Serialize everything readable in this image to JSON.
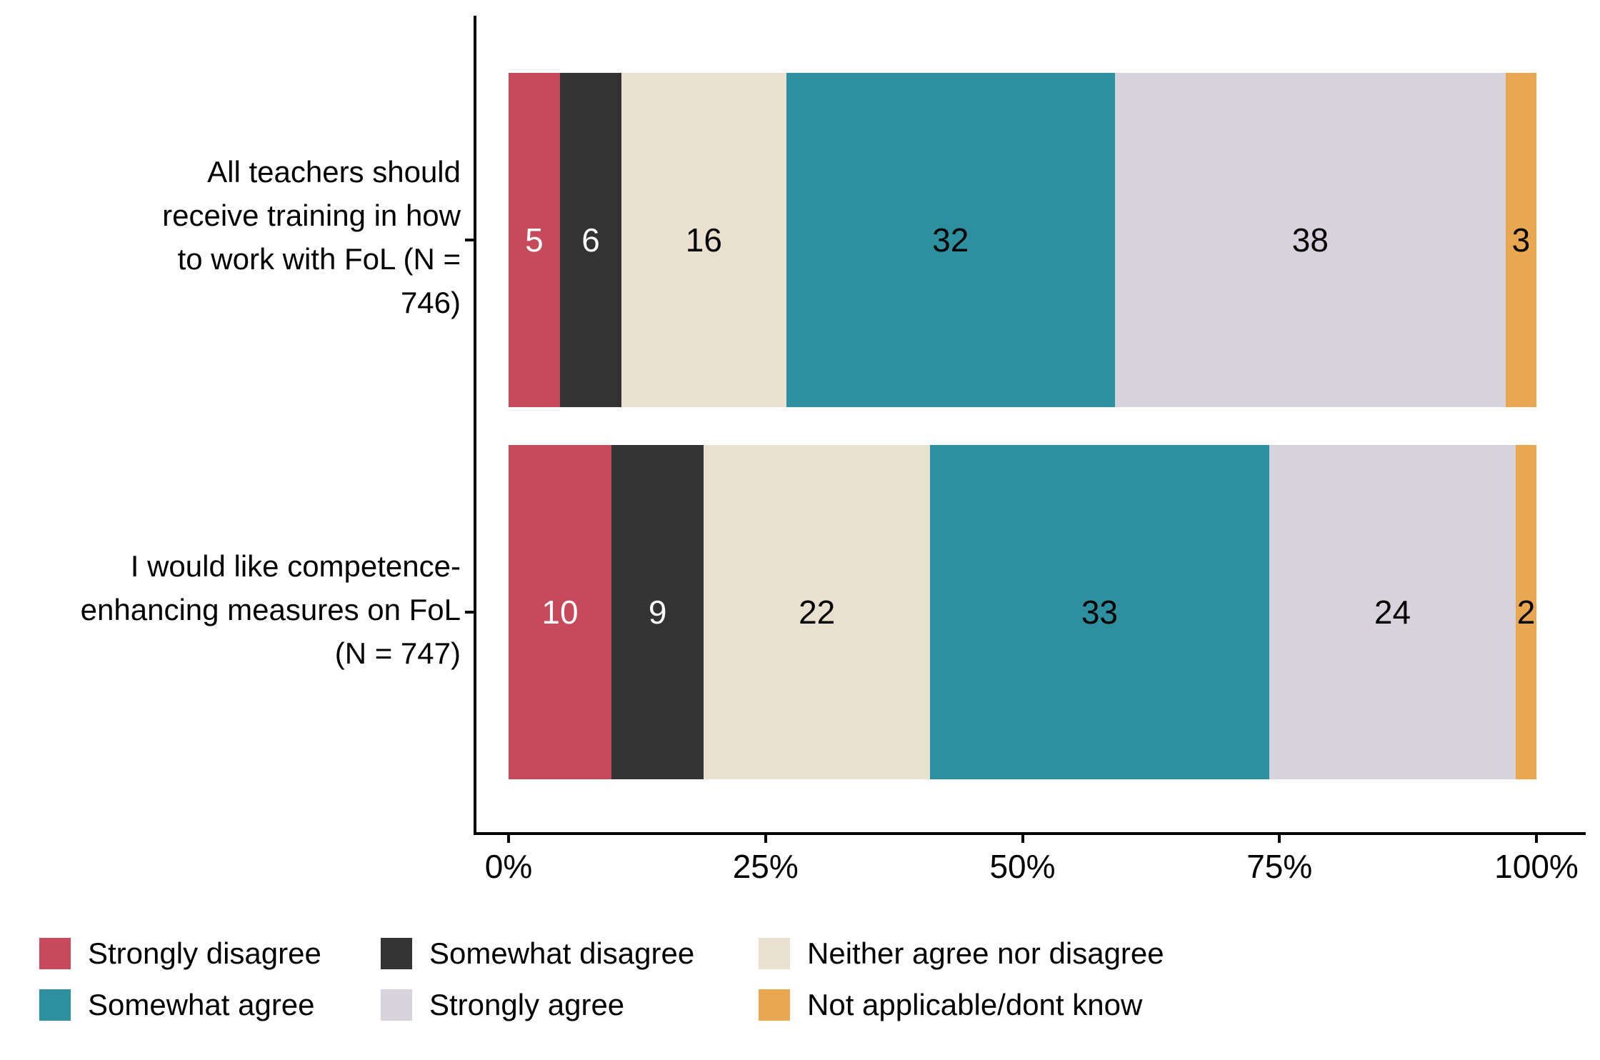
{
  "chart_data": {
    "type": "bar",
    "orientation": "horizontal",
    "stacked": true,
    "title": "",
    "xlabel": "",
    "ylabel": "",
    "unit": "percent",
    "grid": false,
    "categories": [
      "All teachers should receive training in how to work with FoL (N = 746)",
      "I would like competence-enhancing measures on FoL (N = 747)"
    ],
    "category_label_lines": [
      [
        "All teachers should",
        "receive training in how",
        "to work with FoL (N =",
        "746)"
      ],
      [
        "I would like competence-",
        "enhancing measures on FoL",
        "(N = 747)"
      ]
    ],
    "series": [
      {
        "name": "Strongly disagree",
        "color": "#C64A5B",
        "label_color": "#FFFFFF",
        "values": [
          5,
          10
        ]
      },
      {
        "name": "Somewhat disagree",
        "color": "#333333",
        "label_color": "#FFFFFF",
        "values": [
          6,
          9
        ]
      },
      {
        "name": "Neither agree nor disagree",
        "color": "#EAE0CF",
        "label_color": "#000000",
        "values": [
          16,
          22
        ]
      },
      {
        "name": "Somewhat agree",
        "color": "#2E8F9E",
        "label_color": "#000000",
        "values": [
          32,
          33
        ]
      },
      {
        "name": "Strongly agree",
        "color": "#D8D2DC",
        "label_color": "#000000",
        "values": [
          38,
          24
        ]
      },
      {
        "name": "Not applicable/dont know",
        "color": "#E9A752",
        "label_color": "#000000",
        "values": [
          3,
          2
        ]
      }
    ],
    "x_axis": {
      "range": [
        0,
        100
      ],
      "tick_labels": [
        "0%",
        "25%",
        "50%",
        "75%",
        "100%"
      ],
      "tick_values": [
        0,
        25,
        50,
        75,
        100
      ]
    },
    "legend": {
      "position": "bottom",
      "rows": [
        [
          "Strongly disagree",
          "Somewhat disagree",
          "Neither agree nor disagree"
        ],
        [
          "Somewhat agree",
          "Strongly agree",
          "Not applicable/dont know"
        ]
      ]
    }
  }
}
